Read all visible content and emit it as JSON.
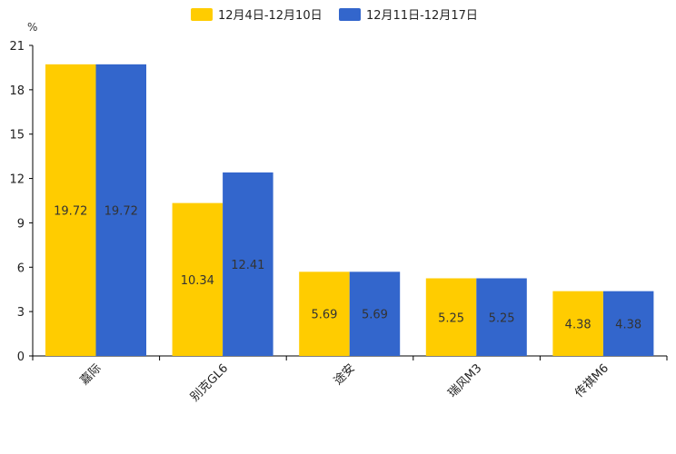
{
  "chart_data": {
    "type": "bar",
    "title": "",
    "xlabel": "",
    "ylabel": "%",
    "ylim": [
      0,
      21
    ],
    "yticks": [
      0,
      3,
      6,
      9,
      12,
      15,
      18,
      21
    ],
    "grid": false,
    "legend_position": "top-center",
    "categories": [
      "嘉际",
      "别克GL6",
      "途安",
      "瑞风M3",
      "传祺M6"
    ],
    "series": [
      {
        "name": "12月4日-12月10日",
        "color": "#FFCC00",
        "values": [
          19.72,
          10.34,
          5.69,
          5.25,
          4.38
        ],
        "labels": [
          "19.72",
          "10.34",
          "5.69",
          "5.25",
          "4.38"
        ]
      },
      {
        "name": "12月11日-12月17日",
        "color": "#3366CC",
        "values": [
          19.72,
          12.41,
          5.69,
          5.25,
          4.38
        ],
        "labels": [
          "19.72",
          "12.41",
          "5.69",
          "5.25",
          "4.38"
        ]
      }
    ]
  }
}
